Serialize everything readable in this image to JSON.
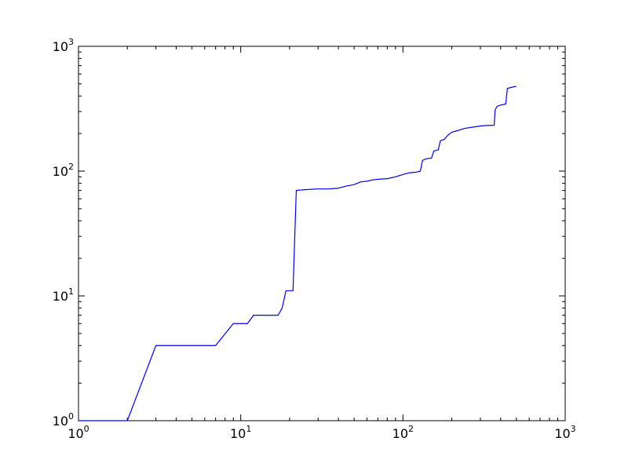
{
  "chart_data": {
    "type": "line",
    "title": "",
    "xlabel": "",
    "ylabel": "",
    "xscale": "log",
    "yscale": "log",
    "xlim": [
      1,
      1000
    ],
    "ylim": [
      1,
      1000
    ],
    "grid": false,
    "legend": "none",
    "x_ticks": [
      {
        "base": "10",
        "exp": "0",
        "value": 1
      },
      {
        "base": "10",
        "exp": "1",
        "value": 10
      },
      {
        "base": "10",
        "exp": "2",
        "value": 100
      },
      {
        "base": "10",
        "exp": "3",
        "value": 1000
      }
    ],
    "y_ticks": [
      {
        "base": "10",
        "exp": "0",
        "value": 1
      },
      {
        "base": "10",
        "exp": "1",
        "value": 10
      },
      {
        "base": "10",
        "exp": "2",
        "value": 100
      },
      {
        "base": "10",
        "exp": "3",
        "value": 1000
      }
    ],
    "series": [
      {
        "color": "#0000ff",
        "points": [
          [
            1,
            1
          ],
          [
            2,
            1
          ],
          [
            3,
            4
          ],
          [
            7,
            4
          ],
          [
            9,
            6
          ],
          [
            11,
            6
          ],
          [
            12,
            7
          ],
          [
            17,
            7
          ],
          [
            18,
            8
          ],
          [
            19,
            11
          ],
          [
            21,
            11
          ],
          [
            22,
            70
          ],
          [
            25,
            71
          ],
          [
            30,
            72
          ],
          [
            35,
            72
          ],
          [
            40,
            73
          ],
          [
            45,
            76
          ],
          [
            50,
            78
          ],
          [
            55,
            82
          ],
          [
            60,
            83
          ],
          [
            65,
            85
          ],
          [
            70,
            86
          ],
          [
            80,
            87
          ],
          [
            90,
            90
          ],
          [
            100,
            94
          ],
          [
            110,
            97
          ],
          [
            120,
            98
          ],
          [
            128,
            100
          ],
          [
            132,
            122
          ],
          [
            140,
            126
          ],
          [
            150,
            127
          ],
          [
            155,
            145
          ],
          [
            165,
            148
          ],
          [
            170,
            175
          ],
          [
            180,
            180
          ],
          [
            190,
            195
          ],
          [
            200,
            205
          ],
          [
            220,
            212
          ],
          [
            240,
            220
          ],
          [
            270,
            225
          ],
          [
            300,
            230
          ],
          [
            330,
            232
          ],
          [
            365,
            233
          ],
          [
            370,
            310
          ],
          [
            380,
            330
          ],
          [
            400,
            338
          ],
          [
            430,
            345
          ],
          [
            440,
            460
          ],
          [
            470,
            470
          ],
          [
            500,
            478
          ]
        ]
      }
    ]
  }
}
